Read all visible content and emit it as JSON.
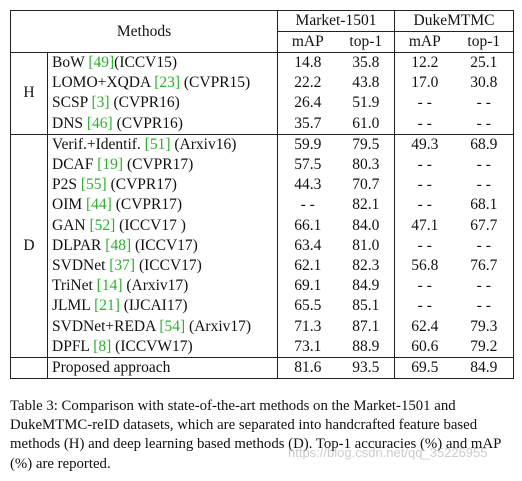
{
  "table": {
    "header": {
      "methods": "Methods",
      "market": "Market-1501",
      "duke": "DukeMTMC",
      "map": "mAP",
      "top1": "top-1"
    },
    "groups": {
      "h": "H",
      "d": "D"
    },
    "rows": [
      {
        "name": "BoW ",
        "ref": "[49]",
        "venue": "(ICCV15)",
        "m_map": "14.8",
        "m_top1": "35.8",
        "d_map": "12.2",
        "d_top1": "25.1"
      },
      {
        "name": "LOMO+XQDA ",
        "ref": "[23]",
        "venue": " (CVPR15)",
        "m_map": "22.2",
        "m_top1": "43.8",
        "d_map": "17.0",
        "d_top1": "30.8"
      },
      {
        "name": "SCSP ",
        "ref": "[3]",
        "venue": " (CVPR16)",
        "m_map": "26.4",
        "m_top1": "51.9",
        "d_map": "- -",
        "d_top1": "- -"
      },
      {
        "name": "DNS ",
        "ref": "[46]",
        "venue": " (CVPR16)",
        "m_map": "35.7",
        "m_top1": "61.0",
        "d_map": "- -",
        "d_top1": "- -"
      },
      {
        "name": "Verif.+Identif. ",
        "ref": "[51]",
        "venue": " (Arxiv16)",
        "m_map": "59.9",
        "m_top1": "79.5",
        "d_map": "49.3",
        "d_top1": "68.9"
      },
      {
        "name": "DCAF ",
        "ref": "[19]",
        "venue": " (CVPR17)",
        "m_map": "57.5",
        "m_top1": "80.3",
        "d_map": "- -",
        "d_top1": "- -"
      },
      {
        "name": "P2S ",
        "ref": "[55]",
        "venue": " (CVPR17)",
        "m_map": "44.3",
        "m_top1": "70.7",
        "d_map": "- -",
        "d_top1": "- -"
      },
      {
        "name": "OIM ",
        "ref": "[44]",
        "venue": " (CVPR17)",
        "m_map": "- -",
        "m_top1": "82.1",
        "d_map": "- -",
        "d_top1": "68.1"
      },
      {
        "name": "GAN ",
        "ref": "[52]",
        "venue": " (ICCV17 )",
        "m_map": "66.1",
        "m_top1": "84.0",
        "d_map": "47.1",
        "d_top1": "67.7"
      },
      {
        "name": "DLPAR ",
        "ref": "[48]",
        "venue": " (ICCV17)",
        "m_map": "63.4",
        "m_top1": "81.0",
        "d_map": "- -",
        "d_top1": "- -"
      },
      {
        "name": "SVDNet ",
        "ref": "[37]",
        "venue": " (ICCV17)",
        "m_map": "62.1",
        "m_top1": "82.3",
        "d_map": "56.8",
        "d_top1": "76.7"
      },
      {
        "name": "TriNet ",
        "ref": "[14]",
        "venue": " (Arxiv17)",
        "m_map": "69.1",
        "m_top1": "84.9",
        "d_map": "- -",
        "d_top1": "- -"
      },
      {
        "name": "JLML ",
        "ref": "[21]",
        "venue": " (IJCAI17)",
        "m_map": "65.5",
        "m_top1": "85.1",
        "d_map": "- -",
        "d_top1": "- -"
      },
      {
        "name": "SVDNet+REDA ",
        "ref": "[54]",
        "venue": " (Arxiv17)",
        "m_map": "71.3",
        "m_top1": "87.1",
        "d_map": "62.4",
        "d_top1": "79.3"
      },
      {
        "name": "DPFL ",
        "ref": "[8]",
        "venue": " (ICCVW17)",
        "m_map": "73.1",
        "m_top1": "88.9",
        "d_map": "60.6",
        "d_top1": "79.2"
      }
    ],
    "proposed": {
      "name": "Proposed approach",
      "m_map": "81.6",
      "m_top1": "93.5",
      "d_map": "69.5",
      "d_top1": "84.9"
    }
  },
  "caption": "Table 3: Comparison with state-of-the-art methods on the Market-1501 and DukeMTMC-reID datasets, which are separated into handcrafted feature based methods (H) and deep learning based methods (D). Top-1 accuracies (%) and mAP (%) are reported.",
  "watermark": "https://blog.csdn.net/qq_35226955",
  "colors": {
    "ref": "#2fae2f",
    "text": "#111111"
  }
}
